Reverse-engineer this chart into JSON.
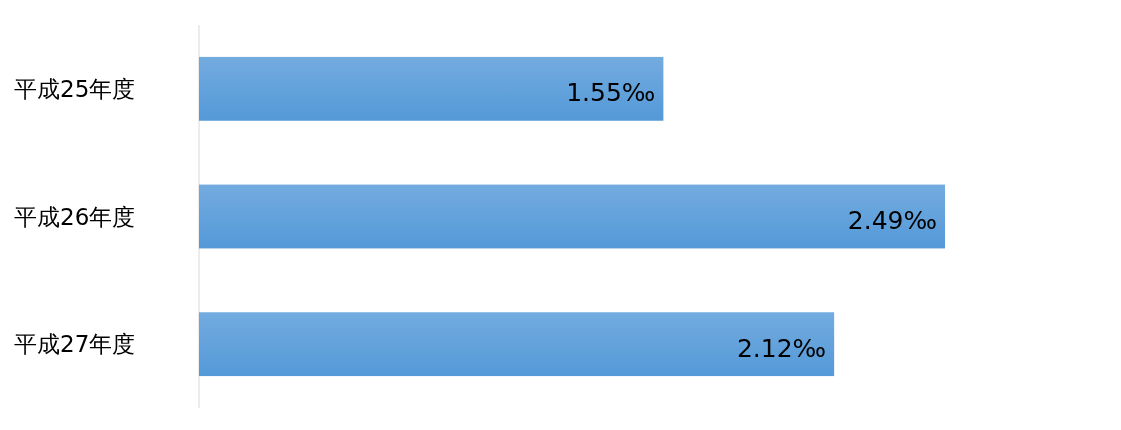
{
  "chart_data": {
    "type": "bar",
    "orientation": "horizontal",
    "categories": [
      "平成25年度",
      "平成26年度",
      "平成27年度"
    ],
    "values": [
      1.55,
      2.49,
      2.12
    ],
    "value_labels": [
      "1.55‰",
      "2.49‰",
      "2.12‰"
    ],
    "color": "#5499d8"
  }
}
